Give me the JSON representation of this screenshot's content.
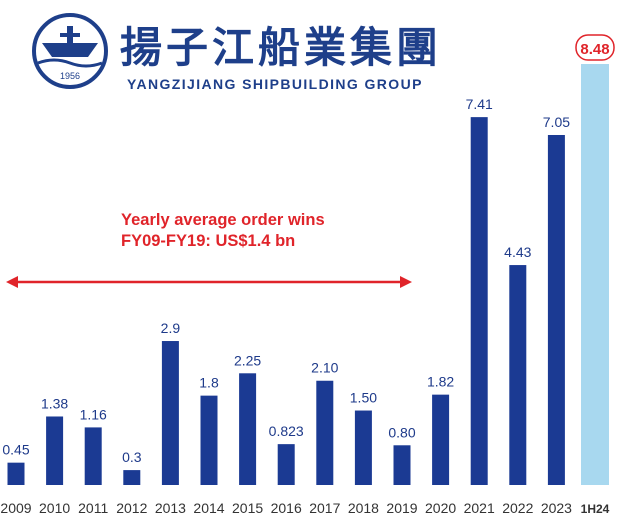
{
  "logo": {
    "emblem_year": "1956",
    "chinese_name": "揚子江船業集團",
    "english_name": "YANGZIJIANG SHIPBUILDING GROUP"
  },
  "annotation": {
    "line1": "Yearly average order wins",
    "line2": "FY09-FY19: US$1.4 bn"
  },
  "colors": {
    "bar": "#1b3a93",
    "highlight_bar": "#a8d8ef",
    "highlight_label": "#e0242a",
    "arrow": "#e0242a",
    "value_label": "#1e3a8a"
  },
  "chart_data": {
    "type": "bar",
    "categories": [
      "2009",
      "2010",
      "2011",
      "2012",
      "2013",
      "2014",
      "2015",
      "2016",
      "2017",
      "2018",
      "2019",
      "2020",
      "2021",
      "2022",
      "2023",
      "1H24"
    ],
    "values": [
      0.45,
      1.38,
      1.16,
      0.3,
      2.9,
      1.8,
      2.25,
      0.823,
      2.1,
      1.5,
      0.8,
      1.82,
      7.41,
      4.43,
      7.05,
      8.48
    ],
    "value_labels": [
      "0.45",
      "1.38",
      "1.16",
      "0.3",
      "2.9",
      "1.8",
      "2.25",
      "0.823",
      "2.10",
      "1.50",
      "0.80",
      "1.82",
      "7.41",
      "4.43",
      "7.05",
      "8.48"
    ],
    "highlighted_category": "1H24",
    "ylim": [
      0,
      8.48
    ],
    "xlabel": "",
    "ylabel": "",
    "grid": false,
    "legend": "none"
  }
}
